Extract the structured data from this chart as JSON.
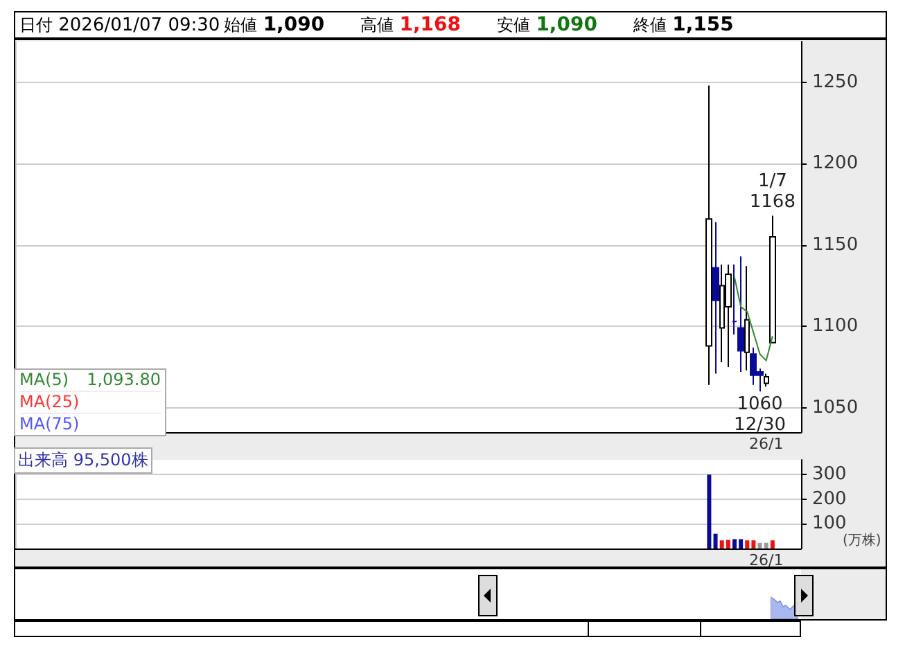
{
  "chart_data": [
    {
      "type": "candlestick",
      "annotations": [
        "日付 2026/01/07 09:30",
        "始値 1,090",
        "高値 1,168",
        "安値 1,090",
        "終値 1,155",
        {
          "text": "1/7\n1168",
          "y": 1168
        },
        {
          "text": "1060\n12/30",
          "y": 1060
        },
        "1,093.80"
      ],
      "categories": [
        null,
        null,
        null,
        null,
        null,
        null,
        null,
        null,
        null,
        null,
        null,
        null,
        null,
        null,
        null,
        null,
        null,
        null,
        null,
        null,
        null,
        null,
        null,
        null,
        null,
        null,
        null,
        null,
        null,
        null,
        null,
        null,
        null,
        null,
        null,
        null,
        null,
        null,
        null,
        null,
        null,
        null,
        null,
        null,
        null,
        null,
        null,
        null,
        null,
        null,
        null,
        null,
        null,
        null,
        null,
        null,
        null,
        null,
        null,
        null,
        null,
        null,
        null,
        null,
        null,
        null,
        null,
        null,
        null,
        null,
        null,
        null,
        null,
        null,
        null,
        null,
        null,
        null,
        null,
        null,
        null,
        null,
        null,
        null,
        null,
        null,
        null,
        null,
        null,
        null,
        null,
        null,
        null,
        null,
        null,
        null,
        null,
        null,
        null,
        null,
        null,
        null,
        null,
        null,
        null,
        null,
        null,
        null,
        null,
        null,
        null,
        null,
        null,
        null,
        null,
        null,
        null,
        null,
        "26/1",
        null,
        null,
        null,
        null,
        null
      ],
      "ohlc": [
        null,
        null,
        null,
        null,
        null,
        null,
        null,
        null,
        null,
        null,
        null,
        null,
        null,
        null,
        null,
        null,
        null,
        null,
        null,
        null,
        null,
        null,
        null,
        null,
        null,
        null,
        null,
        null,
        null,
        null,
        null,
        null,
        null,
        null,
        null,
        null,
        null,
        null,
        null,
        null,
        null,
        null,
        null,
        null,
        null,
        null,
        null,
        null,
        null,
        null,
        null,
        null,
        null,
        null,
        null,
        null,
        null,
        null,
        null,
        null,
        null,
        null,
        null,
        null,
        null,
        null,
        null,
        null,
        null,
        null,
        null,
        null,
        null,
        null,
        null,
        null,
        null,
        null,
        null,
        null,
        null,
        null,
        null,
        null,
        null,
        null,
        null,
        null,
        null,
        null,
        null,
        null,
        null,
        null,
        null,
        null,
        null,
        null,
        null,
        null,
        null,
        null,
        null,
        null,
        null,
        null,
        null,
        null,
        null,
        [
          1088,
          1248,
          1064,
          1166
        ],
        [
          1136,
          1164,
          1071,
          1116
        ],
        [
          1099,
          1138,
          1078,
          1125
        ],
        [
          1112,
          1138,
          1075,
          1132
        ],
        [
          1103,
          1138,
          1095,
          1103
        ],
        [
          1099,
          1143,
          1072,
          1085
        ],
        [
          1084,
          1137,
          1073,
          1104
        ],
        [
          1083,
          1087,
          1064,
          1070
        ],
        [
          1072,
          1074,
          1060,
          1070
        ],
        [
          1065,
          1071,
          1063,
          1069
        ],
        [
          1090,
          1168,
          1090,
          1155
        ],
        null,
        null,
        null,
        null
      ],
      "series": [
        {
          "name": "MA(5)",
          "type": "line",
          "color": "#338833",
          "values": [
            null,
            null,
            null,
            null,
            null,
            null,
            null,
            null,
            null,
            null,
            null,
            null,
            null,
            null,
            null,
            null,
            null,
            null,
            null,
            null,
            null,
            null,
            null,
            null,
            null,
            null,
            null,
            null,
            null,
            null,
            null,
            null,
            null,
            null,
            null,
            null,
            null,
            null,
            null,
            null,
            null,
            null,
            null,
            null,
            null,
            null,
            null,
            null,
            null,
            null,
            null,
            null,
            null,
            null,
            null,
            null,
            null,
            null,
            null,
            null,
            null,
            null,
            null,
            null,
            null,
            null,
            null,
            null,
            null,
            null,
            null,
            null,
            null,
            null,
            null,
            null,
            null,
            null,
            null,
            null,
            null,
            null,
            null,
            null,
            null,
            null,
            null,
            null,
            null,
            null,
            null,
            null,
            null,
            null,
            null,
            null,
            null,
            null,
            null,
            null,
            null,
            null,
            null,
            null,
            null,
            null,
            null,
            null,
            null,
            null,
            null,
            null,
            null,
            1130,
            1112,
            1109,
            1096,
            1083,
            1079,
            1094,
            null,
            null,
            null,
            null
          ]
        },
        {
          "name": "MA(25)",
          "type": "line",
          "color": "#ff3333",
          "values": [
            null,
            null,
            null,
            null,
            null,
            null,
            null,
            null,
            null,
            null,
            null,
            null,
            null,
            null,
            null,
            null,
            null,
            null,
            null,
            null,
            null,
            null,
            null,
            null,
            null,
            null,
            null,
            null,
            null,
            null,
            null,
            null,
            null,
            null,
            null,
            null,
            null,
            null,
            null,
            null,
            null,
            null,
            null,
            null,
            null,
            null,
            null,
            null,
            null,
            null,
            null,
            null,
            null,
            null,
            null,
            null,
            null,
            null,
            null,
            null,
            null,
            null,
            null,
            null,
            null,
            null,
            null,
            null,
            null,
            null,
            null,
            null,
            null,
            null,
            null,
            null,
            null,
            null,
            null,
            null,
            null,
            null,
            null,
            null,
            null,
            null,
            null,
            null,
            null,
            null,
            null,
            null,
            null,
            null,
            null,
            null,
            null,
            null,
            null,
            null,
            null,
            null,
            null,
            null,
            null,
            null,
            null,
            null,
            null,
            null,
            null,
            null,
            null,
            null,
            null,
            null,
            null,
            null,
            null,
            null,
            null,
            null,
            null,
            null
          ]
        },
        {
          "name": "MA(75)",
          "type": "line",
          "color": "#5555ff",
          "values": [
            null,
            null,
            null,
            null,
            null,
            null,
            null,
            null,
            null,
            null,
            null,
            null,
            null,
            null,
            null,
            null,
            null,
            null,
            null,
            null,
            null,
            null,
            null,
            null,
            null,
            null,
            null,
            null,
            null,
            null,
            null,
            null,
            null,
            null,
            null,
            null,
            null,
            null,
            null,
            null,
            null,
            null,
            null,
            null,
            null,
            null,
            null,
            null,
            null,
            null,
            null,
            null,
            null,
            null,
            null,
            null,
            null,
            null,
            null,
            null,
            null,
            null,
            null,
            null,
            null,
            null,
            null,
            null,
            null,
            null,
            null,
            null,
            null,
            null,
            null,
            null,
            null,
            null,
            null,
            null,
            null,
            null,
            null,
            null,
            null,
            null,
            null,
            null,
            null,
            null,
            null,
            null,
            null,
            null,
            null,
            null,
            null,
            null,
            null,
            null,
            null,
            null,
            null,
            null,
            null,
            null,
            null,
            null,
            null,
            null,
            null,
            null,
            null,
            null,
            null,
            null,
            null,
            null,
            null,
            null,
            null,
            null,
            null,
            null
          ]
        }
      ],
      "ylim": [
        1035,
        1275
      ],
      "yticks": [
        1050,
        1100,
        1150,
        1200,
        1250
      ],
      "grid": true,
      "legend": "bottom left"
    },
    {
      "type": "bar",
      "ylabel": "(万株)",
      "annotations": [
        "出来高 95,500株"
      ],
      "categories": [
        null,
        null,
        null,
        null,
        null,
        null,
        null,
        null,
        null,
        null,
        null,
        null,
        null,
        null,
        null,
        null,
        null,
        null,
        null,
        null,
        null,
        null,
        null,
        null,
        null,
        null,
        null,
        null,
        null,
        null,
        null,
        null,
        null,
        null,
        null,
        null,
        null,
        null,
        null,
        null,
        null,
        null,
        null,
        null,
        null,
        null,
        null,
        null,
        null,
        null,
        null,
        null,
        null,
        null,
        null,
        null,
        null,
        null,
        null,
        null,
        null,
        null,
        null,
        null,
        null,
        null,
        null,
        null,
        null,
        null,
        null,
        null,
        null,
        null,
        null,
        null,
        null,
        null,
        null,
        null,
        null,
        null,
        null,
        null,
        null,
        null,
        null,
        null,
        null,
        null,
        null,
        null,
        null,
        null,
        null,
        null,
        null,
        null,
        null,
        null,
        null,
        null,
        null,
        null,
        null,
        null,
        null,
        null,
        null,
        null,
        null,
        null,
        null,
        null,
        null,
        null,
        null,
        null,
        "26/1",
        null,
        null,
        null,
        null,
        null
      ],
      "values": [
        null,
        null,
        null,
        null,
        null,
        null,
        null,
        null,
        null,
        null,
        null,
        null,
        null,
        null,
        null,
        null,
        null,
        null,
        null,
        null,
        null,
        null,
        null,
        null,
        null,
        null,
        null,
        null,
        null,
        null,
        null,
        null,
        null,
        null,
        null,
        null,
        null,
        null,
        null,
        null,
        null,
        null,
        null,
        null,
        null,
        null,
        null,
        null,
        null,
        null,
        null,
        null,
        null,
        null,
        null,
        null,
        null,
        null,
        null,
        null,
        null,
        null,
        null,
        null,
        null,
        null,
        null,
        null,
        null,
        null,
        null,
        null,
        null,
        null,
        null,
        null,
        null,
        null,
        null,
        null,
        null,
        null,
        null,
        null,
        null,
        null,
        null,
        null,
        null,
        null,
        null,
        null,
        null,
        null,
        null,
        null,
        null,
        null,
        null,
        null,
        null,
        null,
        null,
        null,
        null,
        null,
        null,
        null,
        null,
        300,
        60,
        33,
        35,
        38,
        38,
        33,
        33,
        23,
        23,
        33,
        null,
        null,
        null,
        null
      ],
      "colors": [
        null,
        null,
        null,
        null,
        null,
        null,
        null,
        null,
        null,
        null,
        null,
        null,
        null,
        null,
        null,
        null,
        null,
        null,
        null,
        null,
        null,
        null,
        null,
        null,
        null,
        null,
        null,
        null,
        null,
        null,
        null,
        null,
        null,
        null,
        null,
        null,
        null,
        null,
        null,
        null,
        null,
        null,
        null,
        null,
        null,
        null,
        null,
        null,
        null,
        null,
        null,
        null,
        null,
        null,
        null,
        null,
        null,
        null,
        null,
        null,
        null,
        null,
        null,
        null,
        null,
        null,
        null,
        null,
        null,
        null,
        null,
        null,
        null,
        null,
        null,
        null,
        null,
        null,
        null,
        null,
        null,
        null,
        null,
        null,
        null,
        null,
        null,
        null,
        null,
        null,
        null,
        null,
        null,
        null,
        null,
        null,
        null,
        null,
        null,
        null,
        null,
        null,
        null,
        null,
        null,
        null,
        null,
        null,
        null,
        "#0a0a99",
        "#0a0a99",
        "#ee1111",
        "#ee1111",
        "#0a0a99",
        "#0a0a99",
        "#ee1111",
        "#ee1111",
        "#999999",
        "#999999",
        "#ee1111",
        null,
        null,
        null,
        null
      ],
      "ylim": [
        0,
        360
      ],
      "yticks": [
        100,
        200,
        300
      ],
      "grid": true
    }
  ]
}
